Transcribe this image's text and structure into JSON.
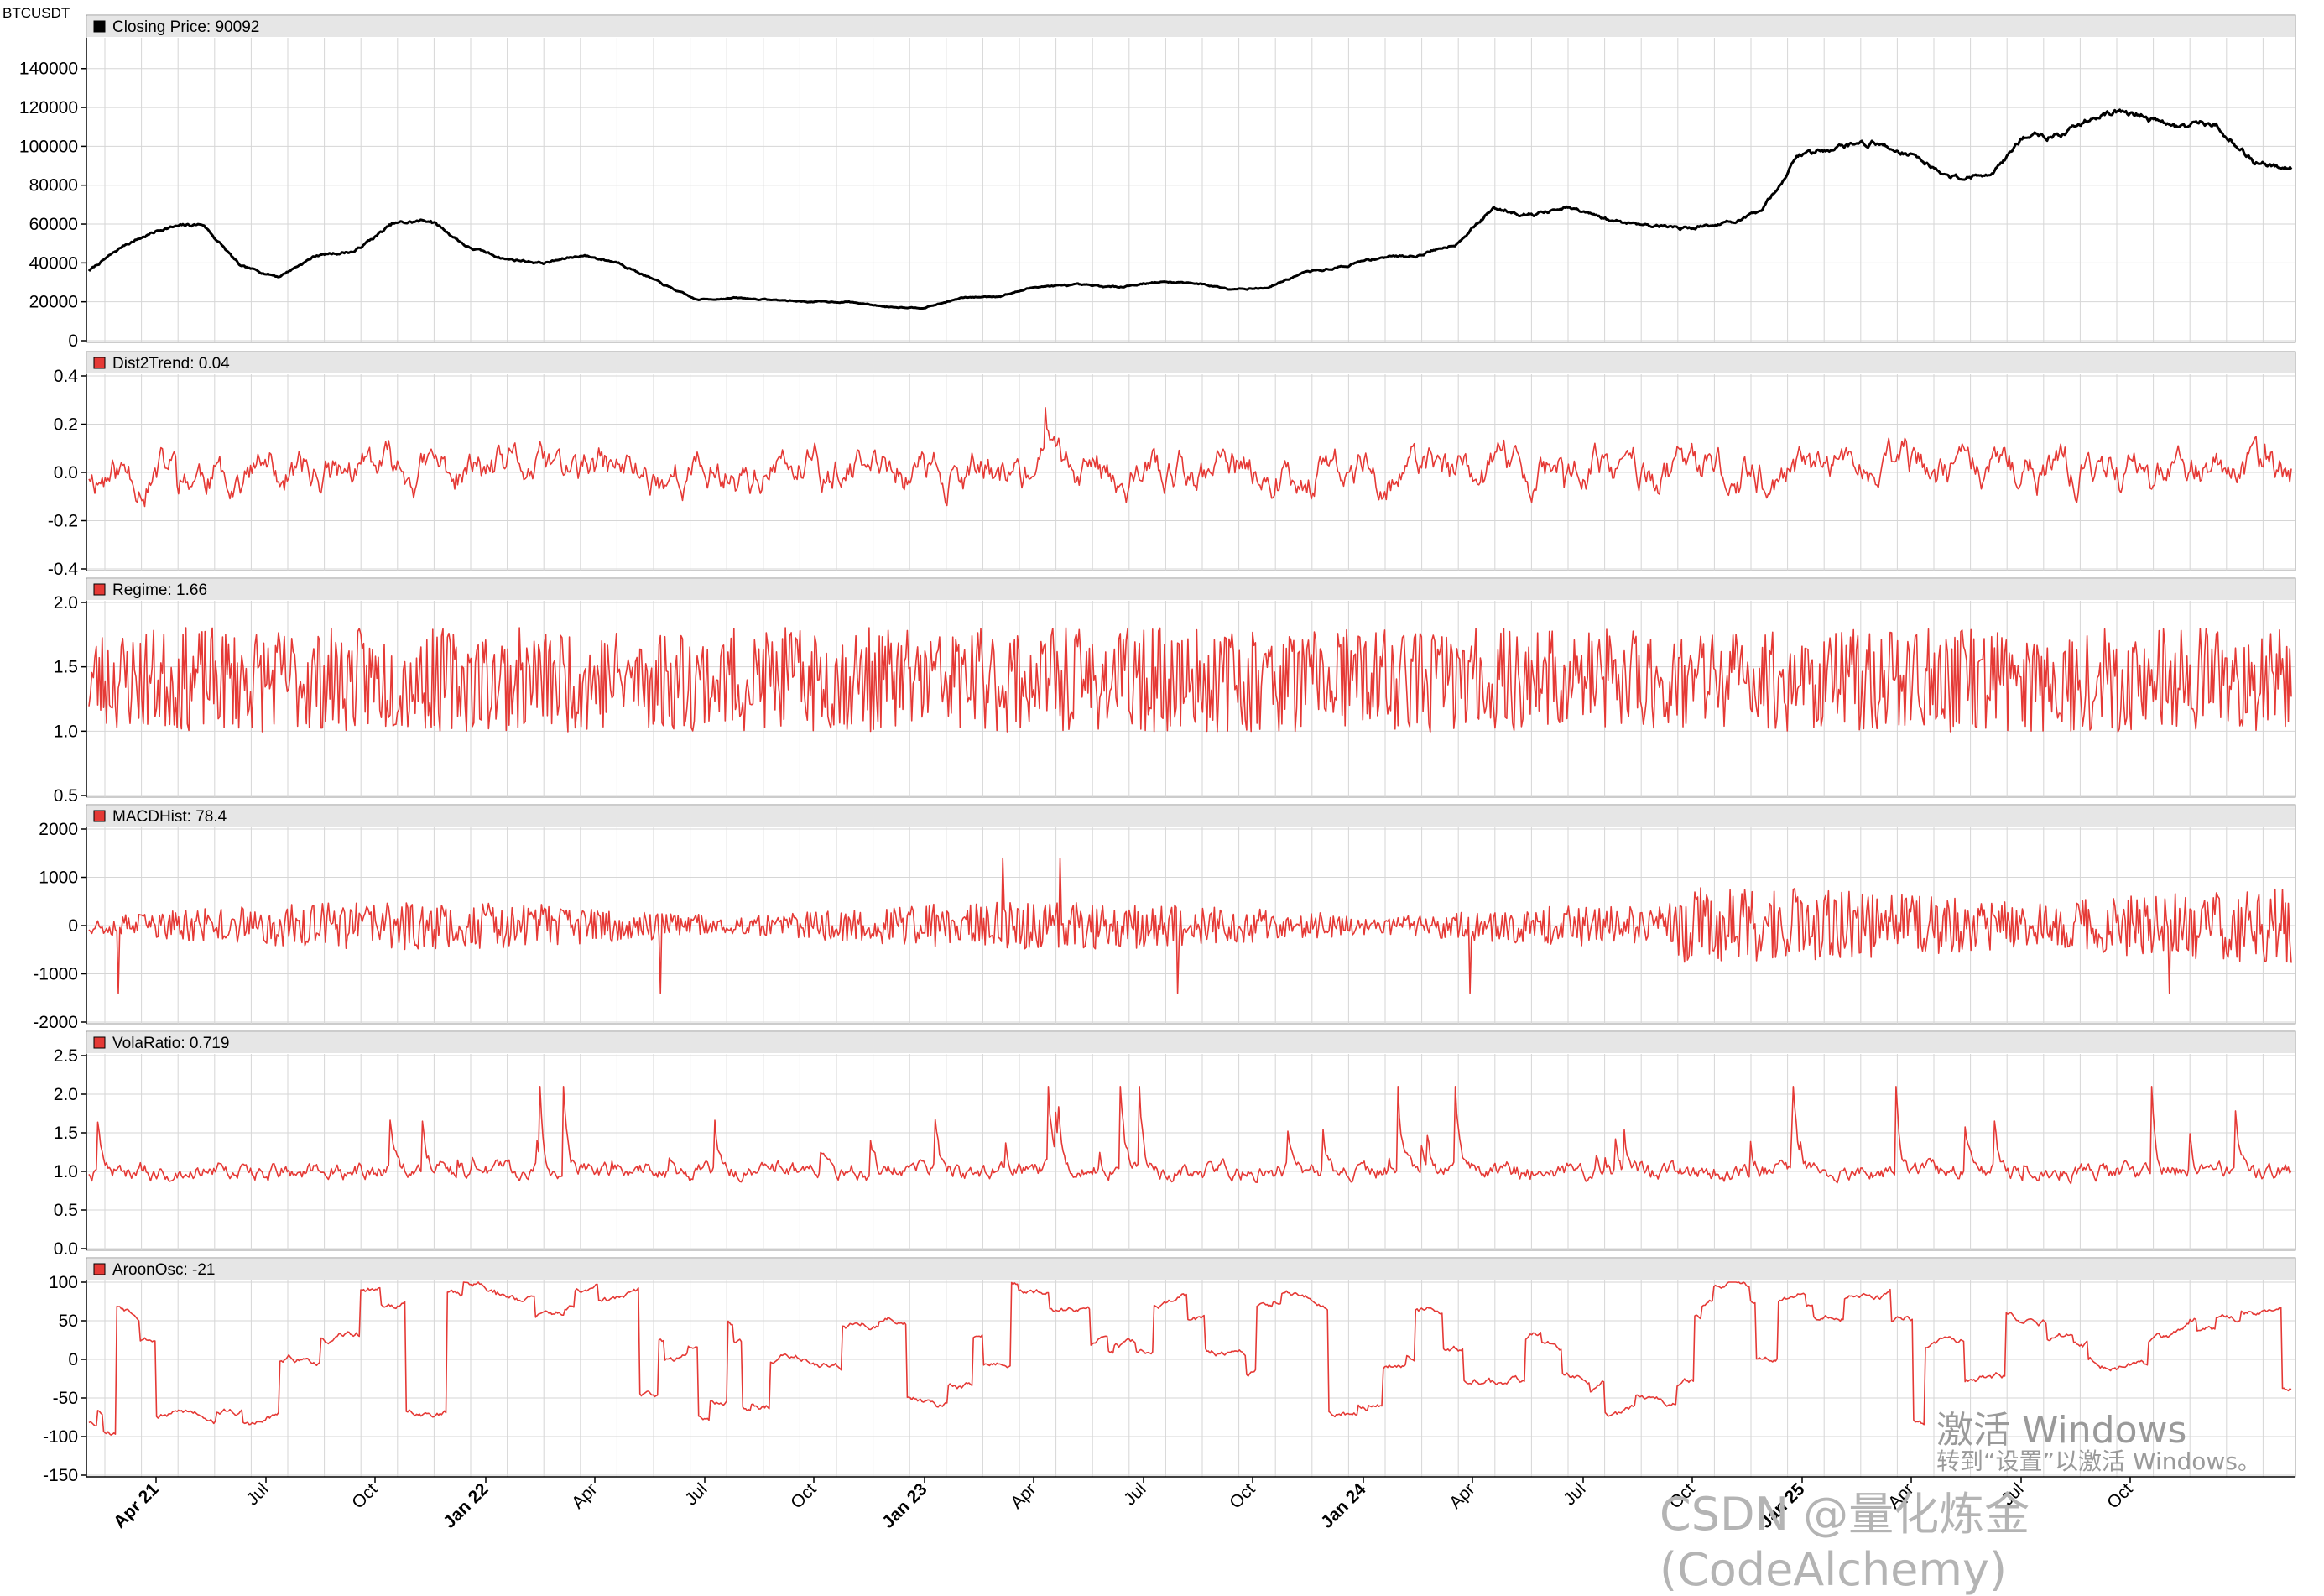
{
  "symbol": "BTCUSDT",
  "watermark": {
    "activate_title": "激活 Windows",
    "activate_sub": "转到“设置”以激活 Windows。",
    "csdn": "CSDN @量化炼金 (CodeAlchemy)"
  },
  "colors": {
    "price": "#000000",
    "indicator": "#e53935",
    "grid": "#d6d6d6",
    "header_bg": "#e6e6e6",
    "axis": "#000000"
  },
  "x_axis": {
    "ticks": [
      {
        "label": "Apr 21",
        "bold": true
      },
      {
        "label": "Jul",
        "bold": false
      },
      {
        "label": "Oct",
        "bold": false
      },
      {
        "label": "Jan 22",
        "bold": true
      },
      {
        "label": "Apr",
        "bold": false
      },
      {
        "label": "Jul",
        "bold": false
      },
      {
        "label": "Oct",
        "bold": false
      },
      {
        "label": "Jan 23",
        "bold": true
      },
      {
        "label": "Apr",
        "bold": false
      },
      {
        "label": "Jul",
        "bold": false
      },
      {
        "label": "Oct",
        "bold": false
      },
      {
        "label": "Jan 24",
        "bold": true
      },
      {
        "label": "Apr",
        "bold": false
      },
      {
        "label": "Jul",
        "bold": false
      },
      {
        "label": "Oct",
        "bold": false
      },
      {
        "label": "Jan 25",
        "bold": true
      },
      {
        "label": "Apr",
        "bold": false
      },
      {
        "label": "Jul",
        "bold": false
      },
      {
        "label": "Oct",
        "bold": false
      }
    ]
  },
  "chart_data": [
    {
      "type": "line",
      "title": "Closing Price: 90092",
      "series_name": "Closing Price",
      "last_value": "90092",
      "color": "#000000",
      "ylim": [
        0,
        155000
      ],
      "yticks": [
        "140000",
        "120000",
        "100000",
        "80000",
        "60000",
        "40000",
        "20000",
        "0"
      ],
      "x": [
        "2021-02",
        "2021-03",
        "2021-04",
        "2021-05",
        "2021-06",
        "2021-07",
        "2021-08",
        "2021-09",
        "2021-10",
        "2021-11",
        "2021-12",
        "2022-01",
        "2022-02",
        "2022-03",
        "2022-04",
        "2022-05",
        "2022-06",
        "2022-07",
        "2022-08",
        "2022-09",
        "2022-10",
        "2022-11",
        "2022-12",
        "2023-01",
        "2023-02",
        "2023-03",
        "2023-04",
        "2023-05",
        "2023-06",
        "2023-07",
        "2023-08",
        "2023-09",
        "2023-10",
        "2023-11",
        "2023-12",
        "2024-01",
        "2024-02",
        "2024-03",
        "2024-04",
        "2024-05",
        "2024-06",
        "2024-07",
        "2024-08",
        "2024-09",
        "2024-10",
        "2024-11",
        "2024-12",
        "2025-01",
        "2025-02",
        "2025-03",
        "2025-04",
        "2025-05",
        "2025-06",
        "2025-07",
        "2025-08",
        "2025-09",
        "2025-10",
        "2025-11",
        "2025-12"
      ],
      "values": [
        36000,
        50000,
        58000,
        60000,
        38000,
        33000,
        44000,
        46000,
        60000,
        62000,
        48000,
        42000,
        40000,
        44000,
        40000,
        30000,
        21000,
        22000,
        21000,
        20000,
        20000,
        17500,
        17000,
        22000,
        23000,
        28000,
        28500,
        27500,
        30000,
        30000,
        27000,
        27000,
        35000,
        38000,
        43000,
        44000,
        50000,
        68000,
        65000,
        68000,
        62000,
        60000,
        58000,
        60000,
        65000,
        95000,
        100000,
        102000,
        96000,
        84000,
        85000,
        105000,
        106000,
        118000,
        116000,
        110000,
        112000,
        92000,
        89000
      ]
    },
    {
      "type": "line",
      "title": "Dist2Trend: 0.04",
      "series_name": "Dist2Trend",
      "last_value": "0.04",
      "color": "#e53935",
      "ylim": [
        -0.4,
        0.4
      ],
      "yticks": [
        "0.4",
        "0.2",
        "0.0",
        "-0.2",
        "-0.4"
      ],
      "center": 0.0,
      "amplitude": 0.16,
      "spike": 0.27,
      "seed": 11
    },
    {
      "type": "line",
      "title": "Regime: 1.66",
      "series_name": "Regime",
      "last_value": "1.66",
      "color": "#e53935",
      "ylim": [
        0.5,
        2.0
      ],
      "yticks": [
        "2.0",
        "1.5",
        "1.0",
        "0.5"
      ],
      "center": 1.4,
      "amplitude": 0.45,
      "spike": 0.55,
      "seed": 23
    },
    {
      "type": "line",
      "title": "MACDHist: 78.4",
      "series_name": "MACDHist",
      "last_value": "78.4",
      "color": "#e53935",
      "ylim": [
        -2000,
        2000
      ],
      "yticks": [
        "2000",
        "1000",
        "0",
        "-1000",
        "-2000"
      ],
      "center": 0,
      "amplitude": 500,
      "spike": 1400,
      "seed": 37
    },
    {
      "type": "line",
      "title": "VolaRatio: 0.719",
      "series_name": "VolaRatio",
      "last_value": "0.719",
      "color": "#e53935",
      "ylim": [
        0.0,
        2.5
      ],
      "yticks": [
        "2.5",
        "2.0",
        "1.5",
        "1.0",
        "0.5",
        "0.0"
      ],
      "center": 1.0,
      "amplitude": 0.25,
      "spike": 2.1,
      "seed": 41
    },
    {
      "type": "line",
      "title": "AroonOsc: -21",
      "series_name": "AroonOsc",
      "last_value": "-21",
      "color": "#e53935",
      "ylim": [
        -150,
        100
      ],
      "yticks": [
        "100",
        "50",
        "0",
        "-50",
        "-100",
        "-150"
      ],
      "center": 0,
      "amplitude": 100,
      "spike": 100,
      "seed": 53
    }
  ]
}
